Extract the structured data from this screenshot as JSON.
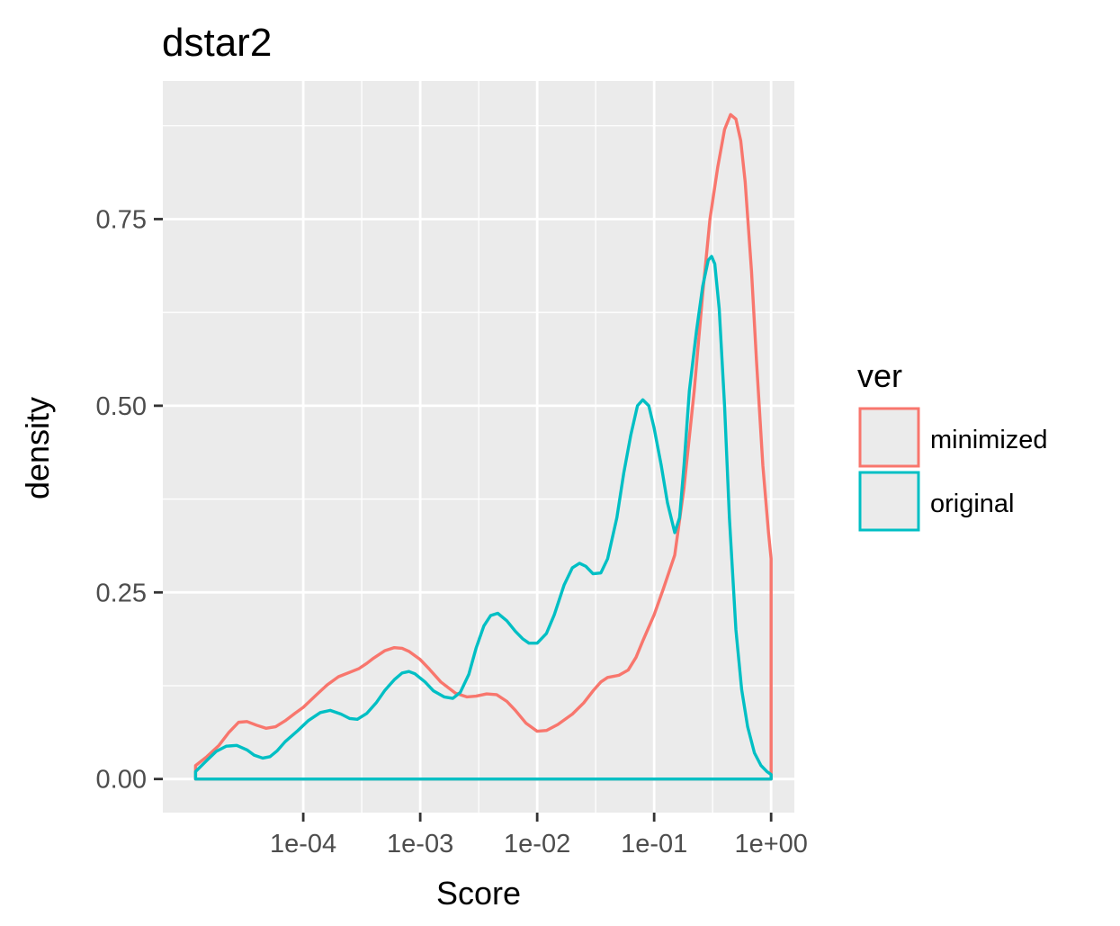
{
  "chart_data": {
    "type": "line",
    "subtype": "density",
    "title": "dstar2",
    "xlabel": "Score",
    "ylabel": "density",
    "x_scale": "log10",
    "x_tick_values": [
      0.0001,
      0.001,
      0.01,
      0.1,
      1
    ],
    "x_tick_labels": [
      "1e-04",
      "1e-03",
      "1e-02",
      "1e-01",
      "1e+00"
    ],
    "y_tick_values": [
      0,
      0.25,
      0.5,
      0.75
    ],
    "y_tick_labels": [
      "0.00",
      "0.25",
      "0.50",
      "0.75"
    ],
    "xlim": [
      6.3e-06,
      1.58
    ],
    "ylim": [
      -0.045,
      0.935
    ],
    "grid": true,
    "legend": {
      "title": "ver",
      "position": "right"
    },
    "series": [
      {
        "name": "minimized",
        "color": "#F8766D",
        "points": [
          [
            1.2e-05,
            0.018
          ],
          [
            1.5e-05,
            0.03
          ],
          [
            1.9e-05,
            0.045
          ],
          [
            2.3e-05,
            0.062
          ],
          [
            2.8e-05,
            0.076
          ],
          [
            3.3e-05,
            0.077
          ],
          [
            4e-05,
            0.072
          ],
          [
            4.8e-05,
            0.068
          ],
          [
            5.8e-05,
            0.07
          ],
          [
            7e-05,
            0.078
          ],
          [
            8.5e-05,
            0.088
          ],
          [
            0.0001,
            0.096
          ],
          [
            0.00013,
            0.113
          ],
          [
            0.00016,
            0.126
          ],
          [
            0.0002,
            0.137
          ],
          [
            0.00025,
            0.143
          ],
          [
            0.0003,
            0.148
          ],
          [
            0.00035,
            0.155
          ],
          [
            0.0004,
            0.162
          ],
          [
            0.0005,
            0.172
          ],
          [
            0.0006,
            0.176
          ],
          [
            0.0007,
            0.175
          ],
          [
            0.0008,
            0.171
          ],
          [
            0.001,
            0.16
          ],
          [
            0.0012,
            0.147
          ],
          [
            0.0015,
            0.13
          ],
          [
            0.002,
            0.115
          ],
          [
            0.0025,
            0.11
          ],
          [
            0.003,
            0.111
          ],
          [
            0.0037,
            0.114
          ],
          [
            0.0045,
            0.113
          ],
          [
            0.0055,
            0.104
          ],
          [
            0.0065,
            0.092
          ],
          [
            0.008,
            0.075
          ],
          [
            0.01,
            0.064
          ],
          [
            0.012,
            0.065
          ],
          [
            0.015,
            0.073
          ],
          [
            0.02,
            0.087
          ],
          [
            0.025,
            0.102
          ],
          [
            0.03,
            0.118
          ],
          [
            0.035,
            0.13
          ],
          [
            0.04,
            0.136
          ],
          [
            0.05,
            0.139
          ],
          [
            0.06,
            0.146
          ],
          [
            0.07,
            0.163
          ],
          [
            0.08,
            0.185
          ],
          [
            0.1,
            0.22
          ],
          [
            0.12,
            0.255
          ],
          [
            0.15,
            0.3
          ],
          [
            0.18,
            0.39
          ],
          [
            0.22,
            0.52
          ],
          [
            0.26,
            0.65
          ],
          [
            0.3,
            0.75
          ],
          [
            0.35,
            0.82
          ],
          [
            0.4,
            0.87
          ],
          [
            0.45,
            0.89
          ],
          [
            0.5,
            0.884
          ],
          [
            0.55,
            0.855
          ],
          [
            0.6,
            0.8
          ],
          [
            0.68,
            0.68
          ],
          [
            0.75,
            0.56
          ],
          [
            0.85,
            0.42
          ],
          [
            0.95,
            0.33
          ],
          [
            1.0,
            0.295
          ]
        ]
      },
      {
        "name": "original",
        "color": "#00BFC4",
        "points": [
          [
            1.2e-05,
            0.01
          ],
          [
            1.5e-05,
            0.025
          ],
          [
            1.8e-05,
            0.037
          ],
          [
            2.2e-05,
            0.044
          ],
          [
            2.7e-05,
            0.045
          ],
          [
            3.3e-05,
            0.039
          ],
          [
            3.8e-05,
            0.032
          ],
          [
            4.5e-05,
            0.028
          ],
          [
            5.2e-05,
            0.03
          ],
          [
            6e-05,
            0.038
          ],
          [
            7e-05,
            0.05
          ],
          [
            9e-05,
            0.065
          ],
          [
            0.00011,
            0.078
          ],
          [
            0.00014,
            0.089
          ],
          [
            0.00017,
            0.092
          ],
          [
            0.00021,
            0.087
          ],
          [
            0.00025,
            0.081
          ],
          [
            0.00029,
            0.08
          ],
          [
            0.00035,
            0.088
          ],
          [
            0.00042,
            0.102
          ],
          [
            0.0005,
            0.119
          ],
          [
            0.0006,
            0.133
          ],
          [
            0.0007,
            0.142
          ],
          [
            0.0008,
            0.144
          ],
          [
            0.0009,
            0.141
          ],
          [
            0.0011,
            0.13
          ],
          [
            0.0013,
            0.118
          ],
          [
            0.0016,
            0.11
          ],
          [
            0.0019,
            0.108
          ],
          [
            0.0022,
            0.116
          ],
          [
            0.0026,
            0.14
          ],
          [
            0.003,
            0.175
          ],
          [
            0.0035,
            0.205
          ],
          [
            0.004,
            0.219
          ],
          [
            0.0046,
            0.222
          ],
          [
            0.0055,
            0.212
          ],
          [
            0.0065,
            0.198
          ],
          [
            0.0075,
            0.188
          ],
          [
            0.0085,
            0.182
          ],
          [
            0.01,
            0.182
          ],
          [
            0.012,
            0.195
          ],
          [
            0.014,
            0.22
          ],
          [
            0.017,
            0.26
          ],
          [
            0.02,
            0.283
          ],
          [
            0.023,
            0.289
          ],
          [
            0.026,
            0.285
          ],
          [
            0.03,
            0.275
          ],
          [
            0.035,
            0.276
          ],
          [
            0.04,
            0.295
          ],
          [
            0.048,
            0.35
          ],
          [
            0.055,
            0.41
          ],
          [
            0.063,
            0.46
          ],
          [
            0.072,
            0.5
          ],
          [
            0.08,
            0.508
          ],
          [
            0.09,
            0.5
          ],
          [
            0.1,
            0.47
          ],
          [
            0.115,
            0.42
          ],
          [
            0.13,
            0.37
          ],
          [
            0.15,
            0.33
          ],
          [
            0.165,
            0.35
          ],
          [
            0.18,
            0.42
          ],
          [
            0.2,
            0.52
          ],
          [
            0.23,
            0.6
          ],
          [
            0.26,
            0.66
          ],
          [
            0.29,
            0.695
          ],
          [
            0.31,
            0.7
          ],
          [
            0.33,
            0.69
          ],
          [
            0.36,
            0.63
          ],
          [
            0.4,
            0.5
          ],
          [
            0.44,
            0.35
          ],
          [
            0.5,
            0.2
          ],
          [
            0.56,
            0.12
          ],
          [
            0.63,
            0.07
          ],
          [
            0.72,
            0.035
          ],
          [
            0.82,
            0.018
          ],
          [
            0.92,
            0.01
          ],
          [
            1.0,
            0.006
          ]
        ]
      }
    ]
  }
}
